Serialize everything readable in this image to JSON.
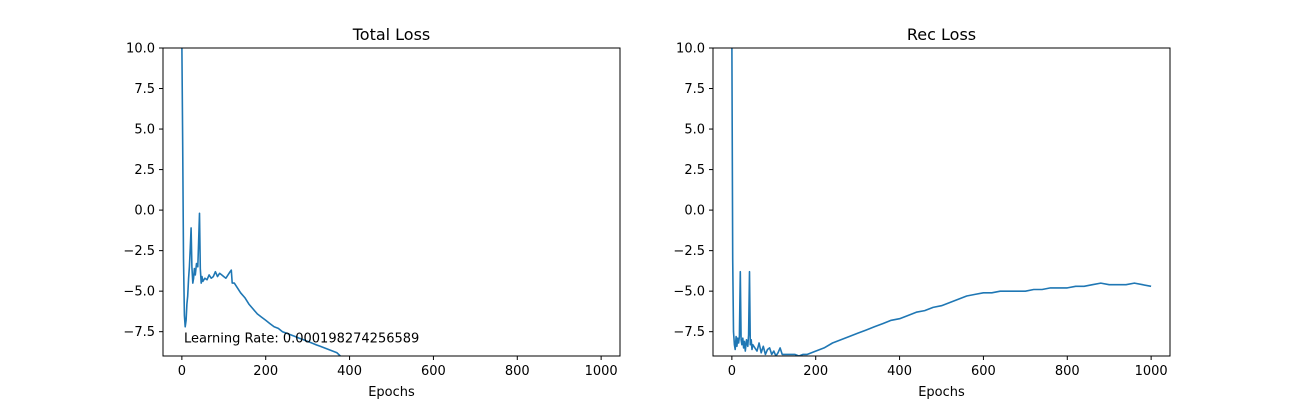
{
  "chart_data": [
    {
      "type": "line",
      "title": "Total Loss",
      "xlabel": "Epochs",
      "ylabel": "",
      "xlim": [
        -45,
        1045
      ],
      "ylim": [
        -9.0,
        10.0
      ],
      "xticks": [
        0,
        200,
        400,
        600,
        800,
        1000
      ],
      "xtick_labels": [
        "0",
        "200",
        "400",
        "600",
        "800",
        "1000"
      ],
      "yticks": [
        -7.5,
        -5.0,
        -2.5,
        0.0,
        2.5,
        5.0,
        7.5,
        10.0
      ],
      "ytick_labels": [
        "−7.5",
        "−5.0",
        "−2.5",
        "0.0",
        "2.5",
        "5.0",
        "7.5",
        "10.0"
      ],
      "grid": false,
      "annotation": {
        "text": "Learning Rate: 0.000198274256589",
        "x": 5,
        "y": -7.9
      },
      "series": [
        {
          "color": "#1f77b4",
          "x": [
            0,
            2,
            4,
            6,
            8,
            10,
            12,
            14,
            16,
            18,
            20,
            22,
            24,
            26,
            28,
            30,
            32,
            35,
            38,
            40,
            42,
            44,
            46,
            48,
            50,
            55,
            60,
            65,
            70,
            75,
            80,
            85,
            90,
            95,
            100,
            105,
            110,
            115,
            118,
            120,
            125,
            130,
            140,
            150,
            160,
            170,
            180,
            190,
            200,
            210,
            220,
            230,
            240,
            250,
            260,
            270,
            280,
            290,
            300,
            310,
            320,
            330,
            340,
            350,
            360,
            370,
            378
          ],
          "y": [
            10.0,
            4.0,
            -3.0,
            -6.5,
            -7.2,
            -6.8,
            -5.8,
            -5.3,
            -4.2,
            -3.5,
            -2.3,
            -1.1,
            -3.5,
            -4.5,
            -4.2,
            -3.6,
            -4.0,
            -3.3,
            -3.5,
            -2.0,
            -0.2,
            -3.6,
            -4.5,
            -4.1,
            -4.4,
            -4.2,
            -4.3,
            -4.0,
            -4.2,
            -4.1,
            -3.8,
            -4.1,
            -3.9,
            -4.0,
            -4.1,
            -4.2,
            -4.0,
            -3.8,
            -3.7,
            -4.5,
            -4.5,
            -4.7,
            -5.1,
            -5.4,
            -5.8,
            -6.1,
            -6.4,
            -6.6,
            -6.8,
            -7.0,
            -7.2,
            -7.3,
            -7.5,
            -7.6,
            -7.7,
            -7.8,
            -7.9,
            -8.0,
            -8.1,
            -8.2,
            -8.3,
            -8.4,
            -8.5,
            -8.6,
            -8.7,
            -8.8,
            -9.0
          ]
        }
      ]
    },
    {
      "type": "line",
      "title": "Rec Loss",
      "xlabel": "Epochs",
      "ylabel": "",
      "xlim": [
        -45,
        1045
      ],
      "ylim": [
        -9.0,
        10.0
      ],
      "xticks": [
        0,
        200,
        400,
        600,
        800,
        1000
      ],
      "xtick_labels": [
        "0",
        "200",
        "400",
        "600",
        "800",
        "1000"
      ],
      "yticks": [
        -7.5,
        -5.0,
        -2.5,
        0.0,
        2.5,
        5.0,
        7.5,
        10.0
      ],
      "ytick_labels": [
        "−7.5",
        "−5.0",
        "−2.5",
        "0.0",
        "2.5",
        "5.0",
        "7.5",
        "10.0"
      ],
      "grid": false,
      "series": [
        {
          "color": "#1f77b4",
          "x": [
            0,
            2,
            4,
            6,
            8,
            10,
            12,
            14,
            16,
            18,
            20,
            22,
            24,
            26,
            28,
            30,
            32,
            35,
            38,
            40,
            42,
            44,
            46,
            48,
            50,
            55,
            60,
            65,
            70,
            75,
            80,
            85,
            90,
            95,
            100,
            105,
            110,
            115,
            120,
            130,
            140,
            150,
            160,
            170,
            180,
            190,
            200,
            220,
            240,
            260,
            280,
            300,
            320,
            340,
            360,
            380,
            400,
            420,
            440,
            460,
            480,
            500,
            520,
            540,
            560,
            580,
            600,
            620,
            640,
            660,
            680,
            700,
            720,
            740,
            760,
            780,
            800,
            820,
            840,
            860,
            880,
            900,
            920,
            940,
            960,
            980,
            1000
          ],
          "y": [
            10.0,
            -3.0,
            -7.5,
            -8.3,
            -8.6,
            -7.8,
            -8.4,
            -7.9,
            -8.2,
            -7.8,
            -3.8,
            -8.0,
            -8.3,
            -7.9,
            -8.5,
            -8.1,
            -8.7,
            -8.0,
            -8.4,
            -7.7,
            -3.8,
            -8.3,
            -8.0,
            -8.6,
            -8.3,
            -8.5,
            -8.7,
            -8.2,
            -8.8,
            -8.4,
            -8.9,
            -8.6,
            -8.5,
            -8.9,
            -8.7,
            -9.0,
            -8.8,
            -8.5,
            -8.9,
            -8.9,
            -8.9,
            -8.9,
            -9.0,
            -8.9,
            -8.9,
            -8.8,
            -8.7,
            -8.5,
            -8.2,
            -8.0,
            -7.8,
            -7.6,
            -7.4,
            -7.2,
            -7.0,
            -6.8,
            -6.7,
            -6.5,
            -6.3,
            -6.2,
            -6.0,
            -5.9,
            -5.7,
            -5.5,
            -5.3,
            -5.2,
            -5.1,
            -5.1,
            -5.0,
            -5.0,
            -5.0,
            -5.0,
            -4.9,
            -4.9,
            -4.8,
            -4.8,
            -4.8,
            -4.7,
            -4.7,
            -4.6,
            -4.5,
            -4.6,
            -4.6,
            -4.6,
            -4.5,
            -4.6,
            -4.7
          ]
        }
      ]
    }
  ]
}
